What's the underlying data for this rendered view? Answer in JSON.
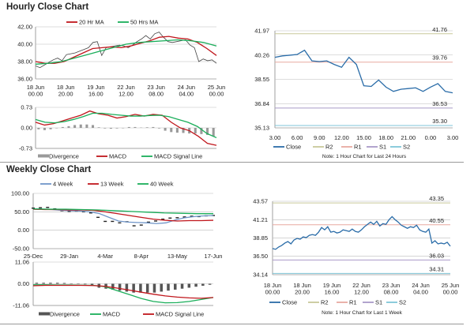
{
  "sections": {
    "hourly_title": "Hourly Close Chart",
    "weekly_title": "Weekly Close Chart"
  },
  "notes": {
    "hourly_24": "Note: 1 Hour Chart for Last 24 Hours",
    "hourly_week": "Note: 1 Hour Chart for Last 1 Week"
  },
  "colors": {
    "red": "#c0161c",
    "green": "#1aae5a",
    "blue": "#2a6ca8",
    "lightblue": "#6f95c8",
    "r2": "#c9c99a",
    "r1": "#e8a9a0",
    "s1": "#a99ac8",
    "s2": "#7fc6d8",
    "bar": "#999999",
    "darkbar": "#555555"
  },
  "chart_data": [
    {
      "id": "hourly_price",
      "type": "line",
      "ylim": [
        36,
        42
      ],
      "yticks": [
        "42.00",
        "40.00",
        "38.00",
        "36.00"
      ],
      "ytick_values": [
        42,
        40,
        38,
        36
      ],
      "xticks": [
        [
          "18 Jun",
          "00.00"
        ],
        [
          "18 Jun",
          "20.00"
        ],
        [
          "19 Jun",
          "16.00"
        ],
        [
          "22 Jun",
          "12.00"
        ],
        [
          "23 Jun",
          "08.00"
        ],
        [
          "24 Jun",
          "04.00"
        ],
        [
          "25 Jun",
          "00.00"
        ]
      ],
      "legend": [
        "20 Hr MA",
        "50 Hrs MA"
      ],
      "series": [
        {
          "name": "Close",
          "color": "#444444",
          "values": [
            37.5,
            37.3,
            37.6,
            37.9,
            38.2,
            38.4,
            38.1,
            38.8,
            38.9,
            39.0,
            39.2,
            39.4,
            39.6,
            40.2,
            40.3,
            38.7,
            39.6,
            39.7,
            39.8,
            39.9,
            39.8,
            39.6,
            39.9,
            40.3,
            40.6,
            41.0,
            40.6,
            41.2,
            41.4,
            40.8,
            40.3,
            40.2,
            40.3,
            40.4,
            40.5,
            39.9,
            39.6,
            38.0,
            38.3,
            38.1,
            38.2,
            37.8
          ]
        },
        {
          "name": "20 Hr MA",
          "color": "#c0161c",
          "values": [
            38.0,
            37.8,
            37.8,
            38.0,
            38.5,
            39.0,
            39.5,
            39.6,
            39.7,
            39.6,
            39.8,
            40.1,
            40.4,
            40.8,
            40.9,
            40.7,
            40.6,
            40.2,
            39.5,
            38.7
          ]
        },
        {
          "name": "50 Hrs MA",
          "color": "#1aae5a",
          "values": [
            37.7,
            37.8,
            38.0,
            38.4,
            38.8,
            39.2,
            39.6,
            40.0,
            40.2,
            40.3,
            40.4,
            40.5,
            40.4,
            40.2,
            39.8
          ]
        }
      ]
    },
    {
      "id": "hourly_macd",
      "type": "line",
      "ylim": [
        -0.73,
        0.73
      ],
      "yticks": [
        "0.73",
        "0.00",
        "-0.73"
      ],
      "ytick_values": [
        0.73,
        0,
        -0.73
      ],
      "legend": [
        "Divergence",
        "MACD",
        "MACD Signal Line"
      ],
      "bars": {
        "name": "Divergence",
        "color": "#999999",
        "values": [
          -0.05,
          -0.08,
          -0.05,
          0,
          0.03,
          0.06,
          0.1,
          0.12,
          0.12,
          0.1,
          0.02,
          -0.02,
          -0.03,
          -0.02,
          0,
          0.03,
          0.03,
          0.01,
          0.02,
          0.03,
          -0.02,
          -0.1,
          -0.15,
          -0.17,
          -0.18,
          -0.2,
          -0.2,
          -0.22,
          -0.25,
          -0.3
        ]
      },
      "series": [
        {
          "name": "MACD",
          "color": "#c0161c",
          "values": [
            0.2,
            0.1,
            0.15,
            0.25,
            0.35,
            0.45,
            0.6,
            0.5,
            0.45,
            0.35,
            0.4,
            0.48,
            0.42,
            0.48,
            0.45,
            0.2,
            0.0,
            -0.1,
            -0.3,
            -0.55,
            -0.62
          ]
        },
        {
          "name": "MACD Signal Line",
          "color": "#1aae5a",
          "values": [
            0.3,
            0.2,
            0.18,
            0.22,
            0.3,
            0.4,
            0.52,
            0.52,
            0.48,
            0.45,
            0.42,
            0.42,
            0.44,
            0.45,
            0.4,
            0.3,
            0.2,
            0.05,
            -0.2,
            -0.35
          ]
        }
      ]
    },
    {
      "id": "pivot_24h",
      "type": "line",
      "ylim": [
        35.13,
        41.97
      ],
      "yticks": [
        "41.97",
        "40.26",
        "38.55",
        "36.84",
        "35.13"
      ],
      "ytick_values": [
        41.97,
        40.26,
        38.55,
        36.84,
        35.13
      ],
      "xticks": [
        [
          "3.00"
        ],
        [
          "6.00"
        ],
        [
          "9.00"
        ],
        [
          "12.00"
        ],
        [
          "15.00"
        ],
        [
          "18.00"
        ],
        [
          "21.00"
        ],
        [
          "0.00"
        ],
        [
          "3.00"
        ]
      ],
      "legend": [
        "Close",
        "R2",
        "R1",
        "S1",
        "S2"
      ],
      "levels": [
        {
          "name": "R2",
          "value": 41.76,
          "label": "41.76",
          "color": "#c9c99a"
        },
        {
          "name": "R1",
          "value": 39.76,
          "label": "39.76",
          "color": "#e8a9a0"
        },
        {
          "name": "S1",
          "value": 36.53,
          "label": "36.53",
          "color": "#a99ac8"
        },
        {
          "name": "S2",
          "value": 35.3,
          "label": "35.30",
          "color": "#7fc6d8"
        }
      ],
      "series": [
        {
          "name": "Close",
          "color": "#2a6ca8",
          "values": [
            40.1,
            40.2,
            40.25,
            40.3,
            40.6,
            39.85,
            39.8,
            39.85,
            39.6,
            39.4,
            40.1,
            39.6,
            38.1,
            38.05,
            38.5,
            38.0,
            37.7,
            37.85,
            37.9,
            37.95,
            37.7,
            38.0,
            38.25,
            37.7,
            37.6
          ]
        }
      ]
    },
    {
      "id": "weekly_price",
      "type": "line",
      "ylim": [
        -50,
        100
      ],
      "yticks": [
        "100.00",
        "50.00",
        "0.00",
        "-50.00"
      ],
      "ytick_values": [
        100,
        50,
        0,
        -50
      ],
      "xticks": [
        [
          "25-Dec"
        ],
        [
          "29-Jan"
        ],
        [
          "4-Mar"
        ],
        [
          "8-Apr"
        ],
        [
          "13-May"
        ],
        [
          "17-Jun"
        ]
      ],
      "legend": [
        "4 Week",
        "13 Week",
        "40 Week"
      ],
      "series": [
        {
          "name": "Close",
          "color": "#222222",
          "dots": true,
          "values": [
            60,
            61,
            62,
            58,
            53,
            51,
            52,
            50,
            47,
            35,
            24,
            24,
            20,
            23,
            12,
            14,
            22,
            25,
            30,
            33,
            34,
            36,
            38,
            37,
            39,
            40
          ]
        },
        {
          "name": "4 Week",
          "color": "#6f95c8",
          "values": [
            58,
            57,
            56,
            54,
            53,
            52,
            50,
            45,
            35,
            25,
            22,
            21,
            20,
            18,
            20,
            28,
            34,
            37,
            39,
            40
          ]
        },
        {
          "name": "13 Week",
          "color": "#c0161c",
          "values": [
            57,
            56,
            56,
            55,
            55,
            54,
            50,
            45,
            40,
            35,
            30,
            27,
            25,
            26,
            26,
            27
          ]
        },
        {
          "name": "40 Week",
          "color": "#1aae5a",
          "values": [
            58,
            57,
            57,
            56,
            55,
            53,
            51,
            49,
            47,
            46,
            45,
            45
          ]
        }
      ]
    },
    {
      "id": "weekly_macd",
      "type": "line",
      "ylim": [
        -11.06,
        11.06
      ],
      "yticks": [
        "11.06",
        "0.00",
        "-11.06"
      ],
      "ytick_values": [
        11.06,
        0,
        -11.06
      ],
      "legend": [
        "Divergence",
        "MACD",
        "MACD Signal Line"
      ],
      "bars": {
        "name": "Divergence",
        "color": "#555555",
        "values": [
          0.5,
          0.5,
          0.5,
          0.5,
          0.4,
          0.2,
          0,
          -0.3,
          -1,
          -2,
          -2.5,
          -3,
          -3.5,
          -4,
          -4.5,
          -4.5,
          -4.5,
          -4.5,
          -4,
          -3.5,
          -3,
          -2.5,
          -2,
          -1.5,
          -1,
          -0.5
        ]
      },
      "series": [
        {
          "name": "MACD",
          "color": "#1aae5a",
          "values": [
            -0.5,
            -0.5,
            -0.6,
            -0.6,
            -0.7,
            -0.8,
            -1.5,
            -3.5,
            -5.5,
            -7.5,
            -9,
            -9.7,
            -9.6,
            -9,
            -8,
            -7
          ]
        },
        {
          "name": "MACD Signal Line",
          "color": "#c0161c",
          "values": [
            -1,
            -0.8,
            -0.8,
            -0.8,
            -0.8,
            -0.9,
            -1.3,
            -2.2,
            -3.2,
            -4.3,
            -5.3,
            -6.2,
            -6.8,
            -7.2,
            -7.4,
            -7
          ]
        }
      ]
    },
    {
      "id": "pivot_week",
      "type": "line",
      "ylim": [
        34.14,
        43.57
      ],
      "yticks": [
        "43.57",
        "41.21",
        "38.85",
        "36.50",
        "34.14"
      ],
      "ytick_values": [
        43.57,
        41.21,
        38.85,
        36.5,
        34.14
      ],
      "xticks": [
        [
          "18 Jun",
          "00.00"
        ],
        [
          "18 Jun",
          "20.00"
        ],
        [
          "19 Jun",
          "16.00"
        ],
        [
          "22 Jun",
          "12.00"
        ],
        [
          "23 Jun",
          "08.00"
        ],
        [
          "24 Jun",
          "04.00"
        ],
        [
          "25 Jun",
          "00.00"
        ]
      ],
      "legend": [
        "Close",
        "R2",
        "R1",
        "S1",
        "S2"
      ],
      "levels": [
        {
          "name": "R2",
          "value": 43.35,
          "label": "43.35",
          "color": "#c9c99a"
        },
        {
          "name": "R1",
          "value": 40.55,
          "label": "40.55",
          "color": "#e8a9a0"
        },
        {
          "name": "S1",
          "value": 36.03,
          "label": "36.03",
          "color": "#a99ac8"
        },
        {
          "name": "S2",
          "value": 34.31,
          "label": "34.31",
          "color": "#7fc6d8"
        }
      ],
      "series": [
        {
          "name": "Close",
          "color": "#2a6ca8",
          "values": [
            37.5,
            37.4,
            37.7,
            37.9,
            38.2,
            38.4,
            38.1,
            38.6,
            38.8,
            38.7,
            39.0,
            38.9,
            39.2,
            39.3,
            39.2,
            39.6,
            40.2,
            39.9,
            40.3,
            39.6,
            39.7,
            39.5,
            39.6,
            39.9,
            39.8,
            39.7,
            40.0,
            39.7,
            39.6,
            39.9,
            40.3,
            40.6,
            40.9,
            40.6,
            41.0,
            40.4,
            40.7,
            40.6,
            41.2,
            41.6,
            41.2,
            40.9,
            40.5,
            40.3,
            40.1,
            40.3,
            40.2,
            40.5,
            39.9,
            39.7,
            39.6,
            40.0,
            38.2,
            38.5,
            38.1,
            38.2,
            38.1,
            38.3,
            37.8
          ]
        }
      ]
    }
  ]
}
